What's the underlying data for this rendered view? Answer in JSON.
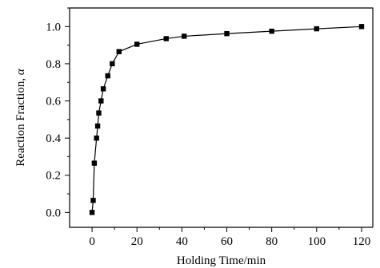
{
  "chart_data": {
    "type": "line",
    "title": "",
    "xlabel": "Holding Time/min",
    "ylabel": "Reaction Fraction, ",
    "ylabel_symbol": "α",
    "xlim": [
      -10,
      125
    ],
    "ylim": [
      -0.08,
      1.1
    ],
    "xticks": [
      0,
      20,
      40,
      60,
      80,
      100,
      120
    ],
    "xtick_labels": [
      "0",
      "20",
      "40",
      "60",
      "80",
      "100",
      "120"
    ],
    "yticks": [
      0.0,
      0.2,
      0.4,
      0.6,
      0.8,
      1.0
    ],
    "ytick_labels": [
      "0.0",
      "0.2",
      "0.4",
      "0.6",
      "0.8",
      "1.0"
    ],
    "grid": false,
    "marker": "square",
    "series": [
      {
        "x": [
          0,
          0.5,
          1,
          2,
          2.5,
          3,
          4,
          5,
          7,
          9,
          12,
          20,
          33,
          41,
          60,
          80,
          100,
          120
        ],
        "y": [
          0.0,
          0.065,
          0.265,
          0.4,
          0.465,
          0.535,
          0.6,
          0.665,
          0.735,
          0.8,
          0.865,
          0.905,
          0.935,
          0.948,
          0.962,
          0.975,
          0.988,
          1.0
        ]
      }
    ]
  }
}
